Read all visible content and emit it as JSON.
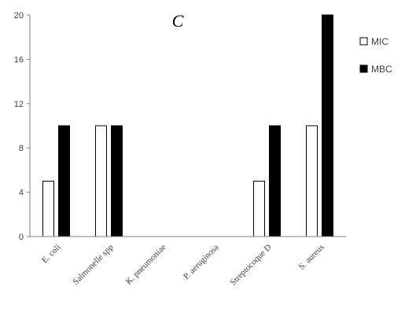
{
  "chart_data": {
    "type": "bar",
    "title": "C",
    "xlabel": "",
    "ylabel": "",
    "ylim": [
      0,
      20
    ],
    "yticks": [
      0,
      4,
      8,
      12,
      16,
      20
    ],
    "grid": false,
    "legend_position": "right",
    "categories": [
      "E. coli",
      "Salmonelle spp",
      "K. pneumoniae",
      "P.  aeruginosa",
      "Streptocoque  D",
      "S. aureus"
    ],
    "series": [
      {
        "name": "MIC",
        "values": [
          5,
          10,
          0,
          0,
          5,
          10
        ],
        "fill": "#ffffff",
        "stroke": "#000000"
      },
      {
        "name": "MBC",
        "values": [
          10,
          10,
          0,
          0,
          10,
          20
        ],
        "fill": "#000000",
        "stroke": "#000000"
      }
    ],
    "axis_color": "#808080",
    "text_color": "#404040"
  }
}
